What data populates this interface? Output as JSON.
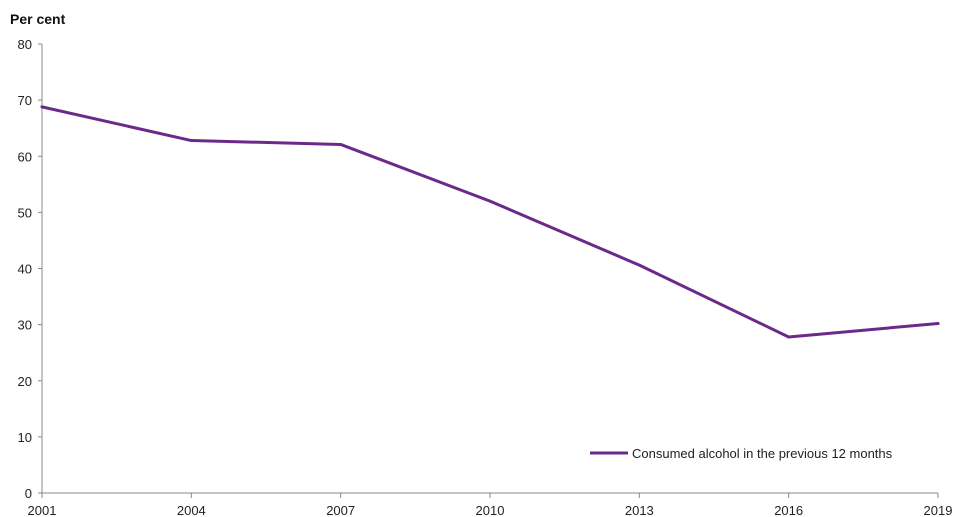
{
  "chart_data": {
    "type": "line",
    "title": "",
    "xlabel": "",
    "ylabel": "Per cent",
    "x": [
      "2001",
      "2004",
      "2007",
      "2010",
      "2013",
      "2016",
      "2019"
    ],
    "ylim": [
      0,
      80
    ],
    "yticks": [
      0,
      10,
      20,
      30,
      40,
      50,
      60,
      70,
      80
    ],
    "grid": false,
    "legend_position": "bottom-right",
    "series": [
      {
        "name": "Consumed alcohol in the previous 12 months",
        "color": "#6b2a8a",
        "values": [
          68.8,
          62.8,
          62.1,
          52.0,
          40.6,
          27.8,
          30.2
        ]
      }
    ]
  }
}
